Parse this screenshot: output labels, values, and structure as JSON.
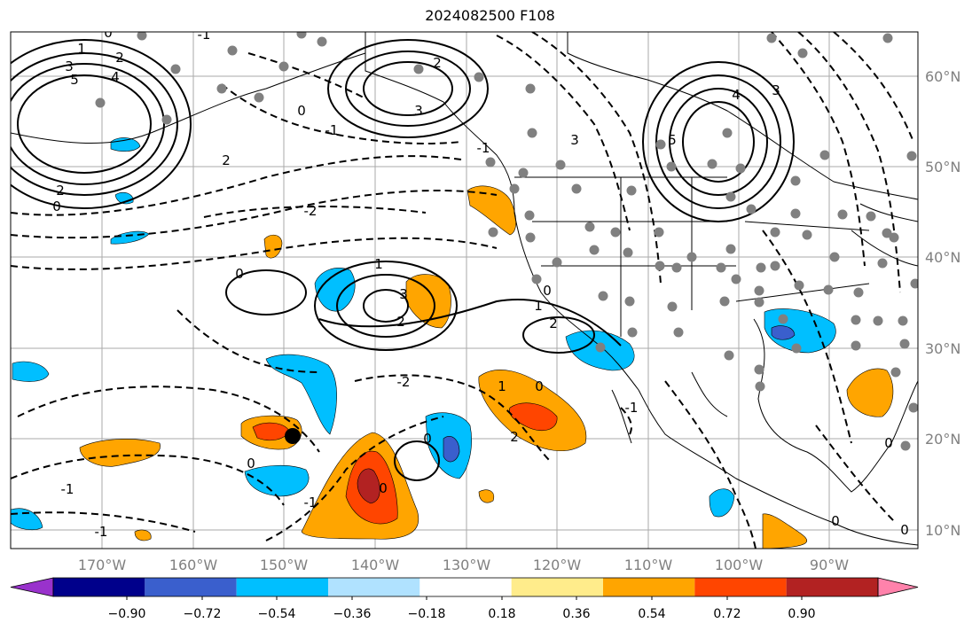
{
  "title": "2024082500 F108",
  "map": {
    "lon_ticks": [
      "170°W",
      "160°W",
      "150°W",
      "140°W",
      "130°W",
      "120°W",
      "110°W",
      "100°W",
      "90°W"
    ],
    "lat_ticks": [
      "10°N",
      "20°N",
      "30°N",
      "40°N",
      "50°N",
      "60°N"
    ],
    "contour_labels": [
      "0",
      "1",
      "2",
      "3",
      "4",
      "5",
      "-1",
      "-2"
    ],
    "marker_color": "#000000",
    "station_dot_color": "#808080"
  },
  "colorbar": {
    "colors": [
      "#9932CC",
      "#00008B",
      "#3A5FCD",
      "#00BFFF",
      "#B0E2FF",
      "#FFFFFF",
      "#FFEC8B",
      "#FFA500",
      "#FF4500",
      "#B22222",
      "#FF82AB"
    ],
    "ticks": [
      "−0.90",
      "−0.72",
      "−0.54",
      "−0.36",
      "−0.18",
      "0.18",
      "0.36",
      "0.54",
      "0.72",
      "0.90"
    ]
  }
}
